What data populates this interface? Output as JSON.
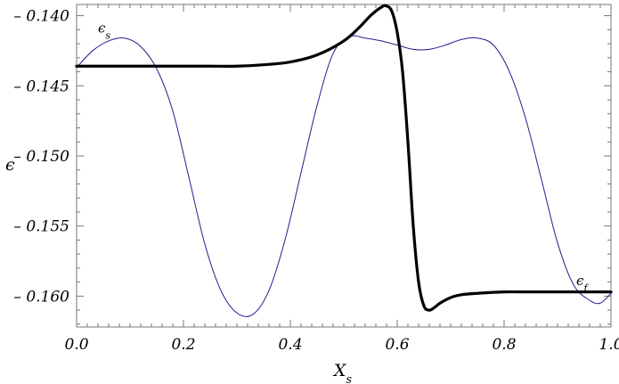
{
  "chart_data": {
    "type": "line",
    "title": "",
    "xlabel": "X",
    "xlabel_sub": "s",
    "ylabel": "ϵ",
    "xlim": [
      0.0,
      1.0
    ],
    "ylim": [
      -0.1622,
      -0.1392
    ],
    "x_ticks": [
      0.0,
      0.2,
      0.4,
      0.6,
      0.8,
      1.0
    ],
    "x_tick_labels": [
      "0.0",
      "0.2",
      "0.4",
      "0.6",
      "0.8",
      "1.0"
    ],
    "y_ticks": [
      -0.14,
      -0.145,
      -0.15,
      -0.155,
      -0.16
    ],
    "y_tick_labels": [
      "– 0.140",
      "– 0.145",
      "– 0.150",
      "– 0.155",
      "– 0.160"
    ],
    "grid": false,
    "annotations": [
      {
        "text": "ϵ",
        "sub": "s",
        "x": 0.04,
        "y": -0.1412
      },
      {
        "text": "ϵ",
        "sub": "f",
        "x": 0.935,
        "y": -0.1592
      }
    ],
    "series": [
      {
        "color": "#1f1f8f",
        "x": [
          0.0,
          0.03,
          0.06,
          0.09,
          0.12,
          0.15,
          0.18,
          0.21,
          0.24,
          0.27,
          0.3,
          0.33,
          0.36,
          0.39,
          0.42,
          0.45,
          0.48,
          0.51,
          0.54,
          0.57,
          0.6,
          0.63,
          0.66,
          0.69,
          0.72,
          0.75,
          0.78,
          0.81,
          0.84,
          0.87,
          0.9,
          0.93,
          0.96,
          0.98,
          1.0
        ],
        "y": [
          -0.1437,
          -0.1425,
          -0.1418,
          -0.1416,
          -0.1422,
          -0.1438,
          -0.1468,
          -0.1515,
          -0.1563,
          -0.1596,
          -0.1612,
          -0.1613,
          -0.1596,
          -0.156,
          -0.1512,
          -0.1464,
          -0.1427,
          -0.1415,
          -0.1416,
          -0.1418,
          -0.1421,
          -0.1424,
          -0.1424,
          -0.1421,
          -0.1417,
          -0.1416,
          -0.1421,
          -0.144,
          -0.1473,
          -0.1517,
          -0.1562,
          -0.1592,
          -0.1603,
          -0.1605,
          -0.1598
        ]
      },
      {
        "color": "#000000",
        "x": [
          0.0,
          0.05,
          0.1,
          0.15,
          0.2,
          0.25,
          0.3,
          0.35,
          0.4,
          0.45,
          0.5,
          0.53,
          0.55,
          0.57,
          0.58,
          0.59,
          0.6,
          0.61,
          0.62,
          0.63,
          0.64,
          0.65,
          0.66,
          0.67,
          0.68,
          0.7,
          0.72,
          0.75,
          0.8,
          0.85,
          0.9,
          0.95,
          1.0
        ],
        "y": [
          -0.1436,
          -0.1436,
          -0.1436,
          -0.1436,
          -0.1436,
          -0.1436,
          -0.1436,
          -0.1435,
          -0.1433,
          -0.1428,
          -0.1418,
          -0.1408,
          -0.14,
          -0.1394,
          -0.1393,
          -0.1397,
          -0.1412,
          -0.144,
          -0.149,
          -0.155,
          -0.159,
          -0.1607,
          -0.161,
          -0.1608,
          -0.1605,
          -0.1601,
          -0.1599,
          -0.1598,
          -0.1597,
          -0.1597,
          -0.1597,
          -0.1597,
          -0.1597
        ]
      }
    ]
  }
}
